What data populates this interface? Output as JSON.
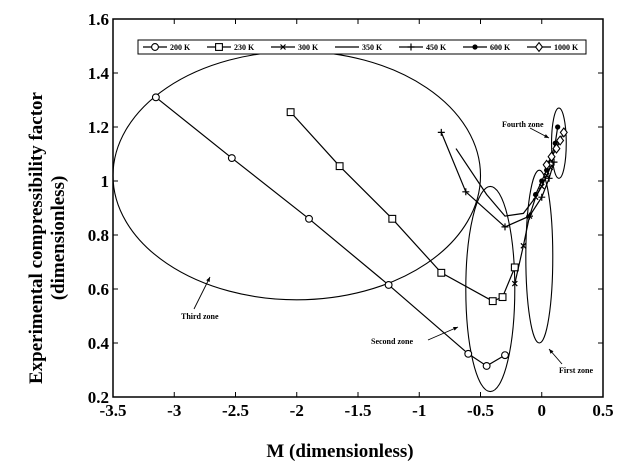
{
  "chart_data": {
    "type": "line",
    "xlabel": "M (dimensionless)",
    "ylabel_line1": "Experimental compressibility factor",
    "ylabel_line2": "(dimensionless)",
    "xlim": [
      -3.5,
      0.5
    ],
    "ylim": [
      0.2,
      1.6
    ],
    "xticks": [
      "-3.5",
      "-3",
      "-2.5",
      "-2",
      "-1.5",
      "-1",
      "-0.5",
      "0",
      "0.5"
    ],
    "yticks": [
      "0.2",
      "0.4",
      "0.6",
      "0.8",
      "1",
      "1.2",
      "1.4",
      "1.6"
    ],
    "legend_position": "top",
    "series": [
      {
        "name": "200 K",
        "marker": "circle",
        "x": [
          -3.15,
          -2.53,
          -1.9,
          -1.25,
          -0.6,
          -0.45,
          -0.3
        ],
        "y": [
          1.31,
          1.085,
          0.86,
          0.615,
          0.36,
          0.315,
          0.355
        ]
      },
      {
        "name": "230 K",
        "marker": "square",
        "x": [
          -2.05,
          -1.65,
          -1.22,
          -0.82,
          -0.4,
          -0.32,
          -0.22
        ],
        "y": [
          1.255,
          1.055,
          0.86,
          0.66,
          0.555,
          0.57,
          0.68
        ]
      },
      {
        "name": "300 K",
        "marker": "x",
        "x": [
          -0.22,
          -0.15,
          -0.1,
          -0.05,
          0.0,
          0.04,
          0.07
        ],
        "y": [
          0.62,
          0.76,
          0.87,
          0.94,
          0.98,
          1.02,
          1.05
        ]
      },
      {
        "name": "350 K",
        "marker": "none",
        "x": [
          -0.7,
          -0.45,
          -0.3,
          -0.15,
          -0.05,
          0.02,
          0.08
        ],
        "y": [
          1.12,
          0.95,
          0.87,
          0.88,
          0.94,
          1.0,
          1.06
        ]
      },
      {
        "name": "450 K",
        "marker": "plus",
        "x": [
          -0.82,
          -0.62,
          -0.3,
          -0.1,
          0.0,
          0.06,
          0.1
        ],
        "y": [
          1.18,
          0.96,
          0.83,
          0.87,
          0.94,
          1.01,
          1.07
        ]
      },
      {
        "name": "600 K",
        "marker": "dot",
        "x": [
          -0.05,
          0.0,
          0.04,
          0.08,
          0.11,
          0.13
        ],
        "y": [
          0.95,
          1.0,
          1.04,
          1.09,
          1.14,
          1.2
        ]
      },
      {
        "name": "1000 K",
        "marker": "diamond",
        "x": [
          0.04,
          0.08,
          0.12,
          0.15,
          0.18
        ],
        "y": [
          1.06,
          1.09,
          1.12,
          1.15,
          1.18
        ]
      }
    ],
    "annotations": [
      {
        "text": "Fourth zone"
      },
      {
        "text": "Third zone"
      },
      {
        "text": "Second zone"
      },
      {
        "text": "First zone"
      }
    ]
  }
}
